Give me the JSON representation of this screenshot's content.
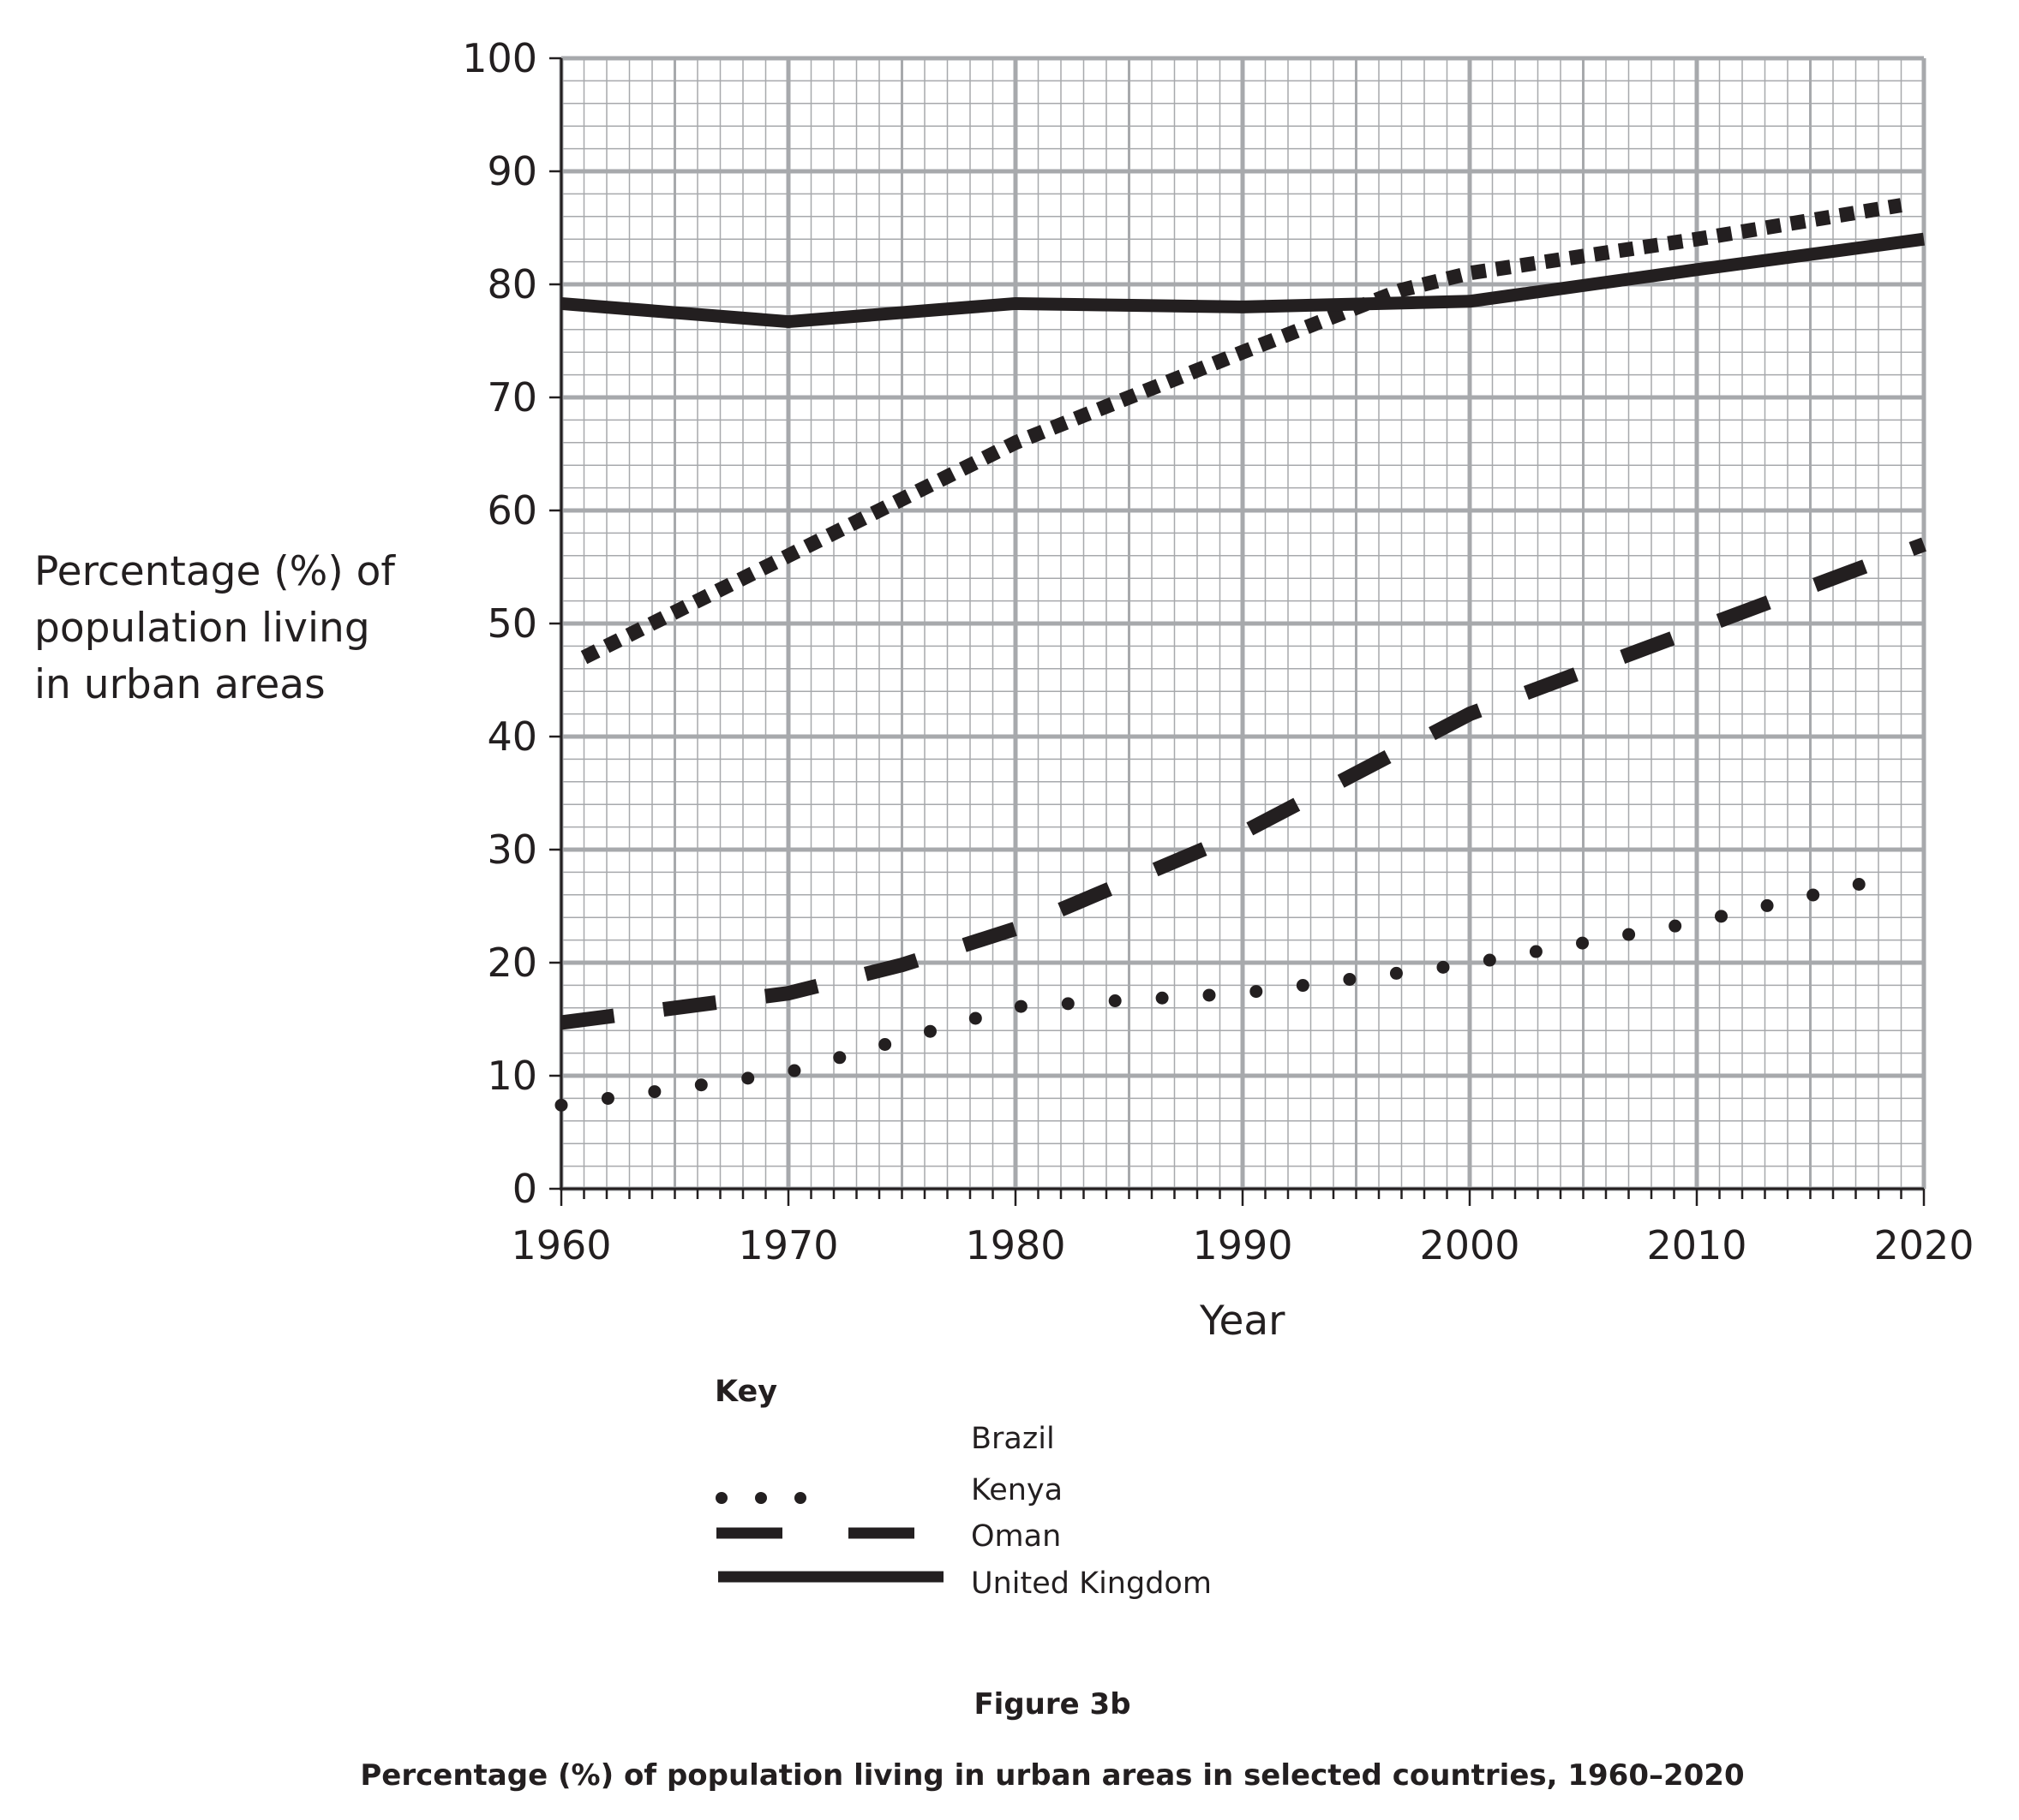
{
  "chart_data": {
    "type": "line",
    "xlabel": "Year",
    "ylabel_lines": [
      "Percentage (%) of",
      "population living",
      "in urban areas"
    ],
    "xlim": [
      1960,
      2020
    ],
    "ylim": [
      0,
      100
    ],
    "x_ticks": [
      1960,
      1970,
      1980,
      1990,
      2000,
      2010,
      2020
    ],
    "y_ticks": [
      0,
      10,
      20,
      30,
      40,
      50,
      60,
      70,
      80,
      90,
      100
    ],
    "grid": true,
    "legend_placement": "bottom",
    "series": [
      {
        "name": "Brazil",
        "style": "square-dotted",
        "x": [
          1961,
          1970,
          1980,
          1990,
          1997,
          2000,
          2010,
          2019
        ],
        "y": [
          47,
          56,
          66,
          74,
          79.5,
          81,
          84,
          87
        ]
      },
      {
        "name": "Kenya",
        "style": "dotted",
        "x": [
          1960,
          1970,
          1980,
          1990,
          2000,
          2010,
          2019
        ],
        "y": [
          7.4,
          10.3,
          16.1,
          17.3,
          19.9,
          23.6,
          27.8
        ]
      },
      {
        "name": "Oman",
        "style": "dashed",
        "x": [
          1960,
          1970,
          1975,
          1980,
          1990,
          2000,
          2010,
          2020
        ],
        "y": [
          14.7,
          17.3,
          19.8,
          23,
          31.5,
          42,
          49.5,
          57
        ]
      },
      {
        "name": "United Kingdom",
        "style": "solid",
        "x": [
          1960,
          1970,
          1980,
          1990,
          2000,
          2010,
          2020
        ],
        "y": [
          78.3,
          76.7,
          78.3,
          78,
          78.5,
          81.3,
          84
        ]
      }
    ],
    "colors": {
      "line": "#231f20",
      "grid": "#a7a9ac"
    }
  },
  "key": {
    "title": "Key",
    "items": [
      "Brazil",
      "Kenya",
      "Oman",
      "United Kingdom"
    ]
  },
  "figure": {
    "label": "Figure 3b",
    "caption": "Percentage (%) of population living in urban areas in selected countries, 1960–2020"
  }
}
